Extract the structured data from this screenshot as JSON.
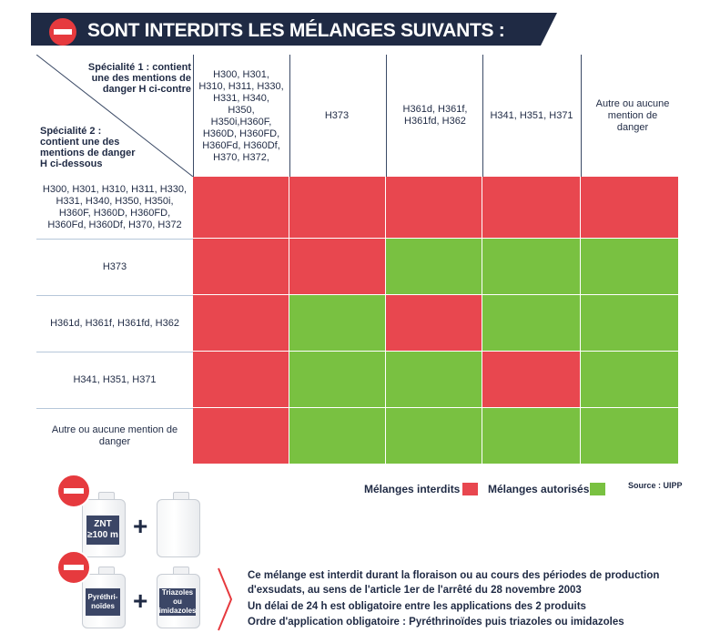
{
  "banner": {
    "title": "SONT INTERDITS LES MÉLANGES SUIVANTS :"
  },
  "corner": {
    "top": "Spécialité 1 : contient une des mentions de danger H ci-contre",
    "bottom": "Spécialité 2 : contient une des mentions de danger H ci-dessous"
  },
  "columns": [
    "H300, H301, H310, H311, H330, H331, H340, H350, H350i,H360F, H360D, H360FD, H360Fd, H360Df, H370, H372,",
    "H373",
    "H361d, H361f, H361fd, H362",
    "H341, H351, H371",
    "Autre ou aucune mention de danger"
  ],
  "rows": [
    {
      "label": "H300, H301, H310, H311, H330, H331, H340, H350, H350i, H360F, H360D, H360FD, H360Fd, H360Df, H370, H372",
      "cells": [
        "interdit",
        "interdit",
        "interdit",
        "interdit",
        "interdit"
      ]
    },
    {
      "label": "H373",
      "cells": [
        "interdit",
        "interdit",
        "autorise",
        "autorise",
        "autorise"
      ]
    },
    {
      "label": "H361d, H361f, H361fd, H362",
      "cells": [
        "interdit",
        "autorise",
        "interdit",
        "autorise",
        "autorise"
      ]
    },
    {
      "label": "H341, H351, H371",
      "cells": [
        "interdit",
        "autorise",
        "autorise",
        "interdit",
        "autorise"
      ]
    },
    {
      "label": "Autre ou aucune mention de danger",
      "cells": [
        "interdit",
        "autorise",
        "autorise",
        "autorise",
        "autorise"
      ]
    }
  ],
  "legend": {
    "forbidden": "Mélanges interdits",
    "allowed": "Mélanges autorisés",
    "source": "Source : UIPP"
  },
  "colors": {
    "forbidden": "#e8474f",
    "allowed": "#79c141",
    "banner": "#1f2a44",
    "nosign": "#e63a3e"
  },
  "bottom": {
    "can1": "ZNT ≥100 m",
    "can2": "Pyréthri- noïdes",
    "can3": "Triazoles ou imidazoles",
    "note1": "Ce mélange est interdit durant la floraison ou au cours des périodes de production",
    "note2": "d'exsudats, au sens de l'article 1er de l'arrêté du 28 novembre 2003",
    "note3": "Un délai de 24 h est obligatoire entre les applications des 2 produits",
    "note4": "Ordre d'application obligatoire : Pyréthrinoïdes puis triazoles ou imidazoles"
  }
}
